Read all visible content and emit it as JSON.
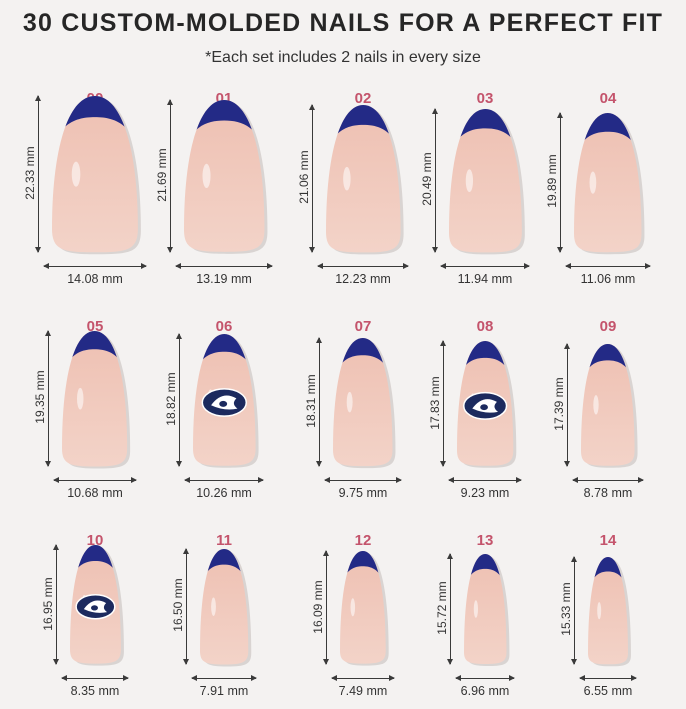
{
  "title": "30 CUSTOM-MOLDED NAILS FOR A PERFECT FIT",
  "subtitle": "*Each set includes 2 nails in every size",
  "colors": {
    "tip": "#232a86",
    "nail_base": "#f3d3c8",
    "nail_tone": "#eec0b2",
    "label": "#c4546c",
    "text": "#2a2a2a"
  },
  "nails": [
    {
      "size": "00",
      "length": "22.33 mm",
      "width": "14.08 mm",
      "logo": false,
      "length_mm": 22.33,
      "width_mm": 14.08
    },
    {
      "size": "01",
      "length": "21.69 mm",
      "width": "13.19 mm",
      "logo": false,
      "length_mm": 21.69,
      "width_mm": 13.19
    },
    {
      "size": "02",
      "length": "21.06 mm",
      "width": "12.23 mm",
      "logo": false,
      "length_mm": 21.06,
      "width_mm": 12.23
    },
    {
      "size": "03",
      "length": "20.49 mm",
      "width": "11.94 mm",
      "logo": false,
      "length_mm": 20.49,
      "width_mm": 11.94
    },
    {
      "size": "04",
      "length": "19.89 mm",
      "width": "11.06 mm",
      "logo": false,
      "length_mm": 19.89,
      "width_mm": 11.06
    },
    {
      "size": "05",
      "length": "19.35 mm",
      "width": "10.68 mm",
      "logo": false,
      "length_mm": 19.35,
      "width_mm": 10.68
    },
    {
      "size": "06",
      "length": "18.82 mm",
      "width": "10.26 mm",
      "logo": true,
      "length_mm": 18.82,
      "width_mm": 10.26
    },
    {
      "size": "07",
      "length": "18.31 mm",
      "width": "9.75 mm",
      "logo": false,
      "length_mm": 18.31,
      "width_mm": 9.75
    },
    {
      "size": "08",
      "length": "17.83 mm",
      "width": "9.23 mm",
      "logo": true,
      "length_mm": 17.83,
      "width_mm": 9.23
    },
    {
      "size": "09",
      "length": "17.39 mm",
      "width": "8.78 mm",
      "logo": false,
      "length_mm": 17.39,
      "width_mm": 8.78
    },
    {
      "size": "10",
      "length": "16.95 mm",
      "width": "8.35 mm",
      "logo": true,
      "length_mm": 16.95,
      "width_mm": 8.35
    },
    {
      "size": "11",
      "length": "16.50 mm",
      "width": "7.91 mm",
      "logo": false,
      "length_mm": 16.5,
      "width_mm": 7.91
    },
    {
      "size": "12",
      "length": "16.09 mm",
      "width": "7.49 mm",
      "logo": false,
      "length_mm": 16.09,
      "width_mm": 7.49
    },
    {
      "size": "13",
      "length": "15.72 mm",
      "width": "6.96 mm",
      "logo": false,
      "length_mm": 15.72,
      "width_mm": 6.96
    },
    {
      "size": "14",
      "length": "15.33 mm",
      "width": "6.55 mm",
      "logo": false,
      "length_mm": 15.33,
      "width_mm": 6.55
    }
  ]
}
